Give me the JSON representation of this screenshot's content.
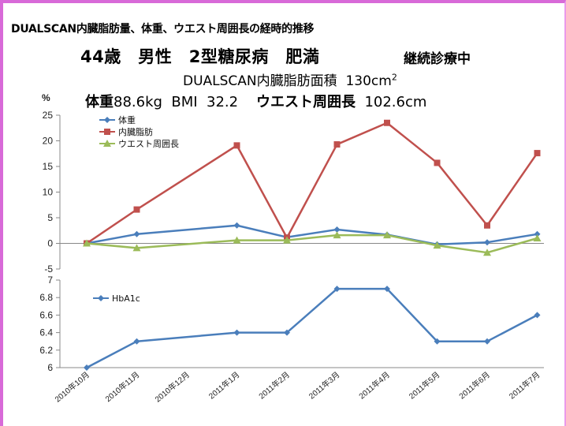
{
  "header": {
    "title": "DUALSCAN内臓脂肪量、体重、ウエスト周囲長の経時的推移",
    "patient": "44歳　男性　2型糖尿病　肥満",
    "status": "継続診療中",
    "dualscan_label": "DUALSCAN内臓脂肪面積",
    "dualscan_value": "130cm",
    "dualscan_unit_sup": "2",
    "weight_label": "体重",
    "weight_value": "88.6kg",
    "bmi_label": "BMI",
    "bmi_value": "32.2",
    "waist_label": "ウエスト周囲長",
    "waist_value": "102.6cm"
  },
  "chart_data": [
    {
      "type": "line",
      "ylabel": "%",
      "ylim": [
        -5,
        25
      ],
      "yticks": [
        -5,
        0,
        5,
        10,
        15,
        20,
        25
      ],
      "grid": false,
      "legend_position": "top-left",
      "categories": [
        "2010年10月",
        "2010年11月",
        "2010年12月",
        "2011年1月",
        "2011年2月",
        "2011年3月",
        "2011年4月",
        "2011年5月",
        "2011年6月",
        "2011年7月"
      ],
      "series": [
        {
          "name": "体重",
          "color": "#4a7ebb",
          "marker": "diamond",
          "values": [
            0,
            1.8,
            null,
            3.5,
            1.2,
            2.7,
            1.7,
            -0.2,
            0.2,
            1.8
          ]
        },
        {
          "name": "内臓脂肪",
          "color": "#c0504d",
          "marker": "square",
          "values": [
            0,
            6.6,
            null,
            19.1,
            1.1,
            19.3,
            23.5,
            15.7,
            3.5,
            17.6
          ]
        },
        {
          "name": "ウエスト周囲長",
          "color": "#9bbb59",
          "marker": "triangle",
          "values": [
            0,
            -0.9,
            null,
            0.6,
            0.6,
            1.6,
            1.6,
            -0.4,
            -1.8,
            1.0
          ]
        }
      ]
    },
    {
      "type": "line",
      "ylim": [
        6,
        7
      ],
      "yticks": [
        "6",
        "6.2",
        "6.4",
        "6.6",
        "6.8",
        "7"
      ],
      "grid": false,
      "legend_position": "top-left",
      "categories": [
        "2010年10月",
        "2010年11月",
        "2010年12月",
        "2011年1月",
        "2011年2月",
        "2011年3月",
        "2011年4月",
        "2011年5月",
        "2011年6月",
        "2011年7月"
      ],
      "series": [
        {
          "name": "HbA1c",
          "color": "#4a7ebb",
          "marker": "diamond",
          "values": [
            6.0,
            6.3,
            null,
            6.4,
            6.4,
            6.9,
            6.9,
            6.3,
            6.3,
            6.6
          ]
        }
      ]
    }
  ]
}
